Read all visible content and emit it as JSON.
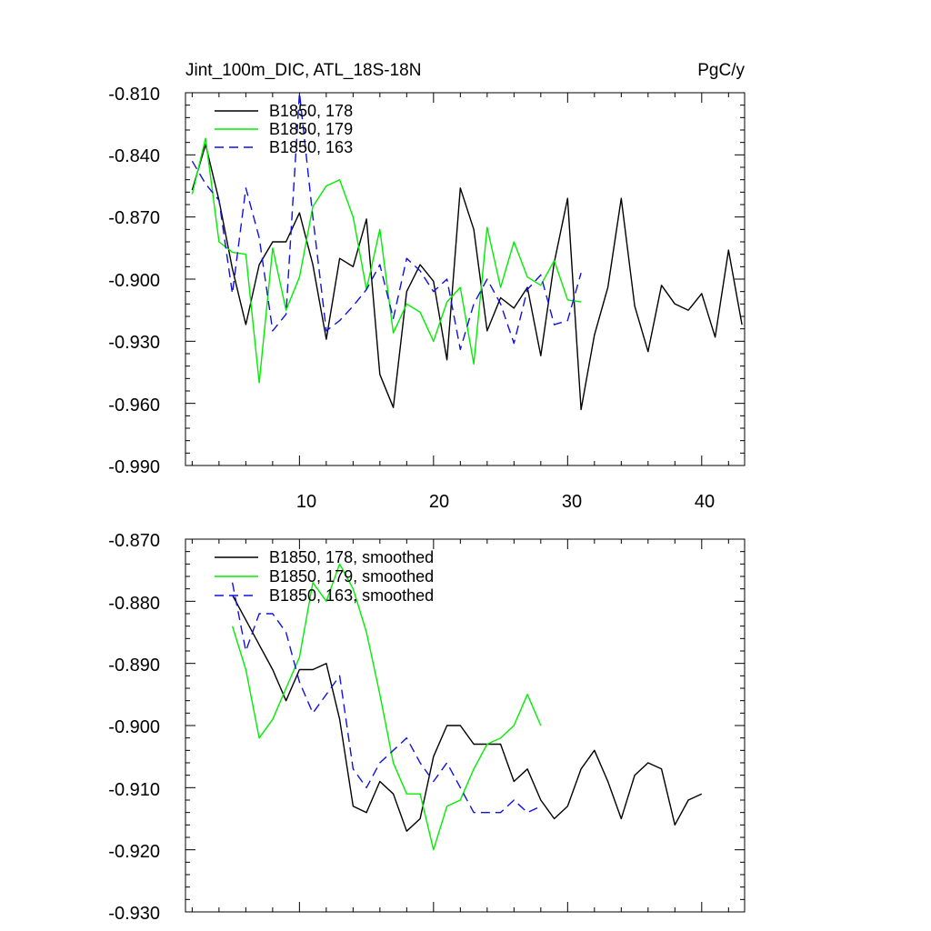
{
  "chart_data": [
    {
      "type": "line",
      "title": "Jint_100m_DIC, ATL_18S-18N",
      "units": "PgC/y",
      "xlim": [
        1.5,
        43.2
      ],
      "ylim": [
        -0.99,
        -0.81
      ],
      "ytick_labels": [
        "-0.810",
        "-0.840",
        "-0.870",
        "-0.900",
        "-0.930",
        "-0.960",
        "-0.990"
      ],
      "xtick_labels": [
        "10",
        "20",
        "30",
        "40"
      ],
      "series": [
        {
          "name": "B1850, 178",
          "color": "#000000",
          "dash": "solid",
          "x": [
            2,
            3,
            4,
            5,
            6,
            7,
            8,
            9,
            10,
            11,
            12,
            13,
            14,
            15,
            16,
            17,
            18,
            19,
            20,
            21,
            22,
            23,
            24,
            25,
            26,
            27,
            28,
            29,
            30,
            31,
            32,
            33,
            34,
            35,
            36,
            37,
            38,
            39,
            40,
            41,
            42,
            43
          ],
          "values": [
            -0.857,
            -0.835,
            -0.862,
            -0.895,
            -0.922,
            -0.893,
            -0.882,
            -0.882,
            -0.868,
            -0.893,
            -0.929,
            -0.89,
            -0.894,
            -0.871,
            -0.946,
            -0.962,
            -0.906,
            -0.893,
            -0.901,
            -0.939,
            -0.856,
            -0.876,
            -0.925,
            -0.909,
            -0.914,
            -0.904,
            -0.937,
            -0.892,
            -0.861,
            -0.963,
            -0.927,
            -0.904,
            -0.861,
            -0.913,
            -0.935,
            -0.903,
            -0.912,
            -0.915,
            -0.907,
            -0.928,
            -0.886,
            -0.922
          ]
        },
        {
          "name": "B1850, 179",
          "color": "#00ee00",
          "dash": "solid",
          "x": [
            2,
            3,
            4,
            5,
            6,
            7,
            8,
            9,
            10,
            11,
            12,
            13,
            14,
            15,
            16,
            17,
            18,
            19,
            20,
            21,
            22,
            23,
            24,
            25,
            26,
            27,
            28,
            29,
            30,
            31
          ],
          "values": [
            -0.859,
            -0.832,
            -0.882,
            -0.887,
            -0.888,
            -0.95,
            -0.885,
            -0.915,
            -0.899,
            -0.865,
            -0.855,
            -0.852,
            -0.87,
            -0.905,
            -0.876,
            -0.926,
            -0.912,
            -0.916,
            -0.93,
            -0.911,
            -0.904,
            -0.941,
            -0.875,
            -0.904,
            -0.882,
            -0.899,
            -0.903,
            -0.891,
            -0.91,
            -0.911
          ]
        },
        {
          "name": "B1850, 163",
          "color": "#1010e0",
          "dash": "dashed",
          "x": [
            2,
            3,
            4,
            5,
            6,
            7,
            8,
            9,
            10,
            11,
            12,
            13,
            14,
            15,
            16,
            17,
            18,
            19,
            20,
            21,
            22,
            23,
            24,
            25,
            26,
            27,
            28,
            29,
            30,
            31
          ],
          "values": [
            -0.843,
            -0.854,
            -0.862,
            -0.907,
            -0.856,
            -0.88,
            -0.925,
            -0.917,
            -0.81,
            -0.87,
            -0.925,
            -0.92,
            -0.913,
            -0.905,
            -0.893,
            -0.919,
            -0.89,
            -0.896,
            -0.906,
            -0.9,
            -0.934,
            -0.912,
            -0.9,
            -0.912,
            -0.931,
            -0.905,
            -0.898,
            -0.922,
            -0.92,
            -0.897
          ]
        }
      ]
    },
    {
      "type": "line",
      "title": "",
      "ylim": [
        -0.93,
        -0.87
      ],
      "ytick_labels": [
        "-0.870",
        "-0.880",
        "-0.890",
        "-0.900",
        "-0.910",
        "-0.920",
        "-0.930"
      ],
      "series": [
        {
          "name": "B1850, 178, smoothed",
          "color": "#000000",
          "dash": "solid",
          "x": [
            5,
            6,
            7,
            8,
            9,
            10,
            11,
            12,
            13,
            14,
            15,
            16,
            17,
            18,
            19,
            20,
            21,
            22,
            23,
            24,
            25,
            26,
            27,
            28,
            29,
            30,
            31,
            32,
            33,
            34,
            35,
            36,
            37,
            38,
            39,
            40
          ],
          "values": [
            -0.879,
            -0.883,
            -0.887,
            -0.891,
            -0.896,
            -0.891,
            -0.891,
            -0.89,
            -0.899,
            -0.913,
            -0.914,
            -0.909,
            -0.911,
            -0.917,
            -0.915,
            -0.905,
            -0.9,
            -0.9,
            -0.903,
            -0.903,
            -0.903,
            -0.909,
            -0.907,
            -0.912,
            -0.915,
            -0.913,
            -0.907,
            -0.904,
            -0.909,
            -0.915,
            -0.908,
            -0.906,
            -0.907,
            -0.916,
            -0.912,
            -0.911
          ]
        },
        {
          "name": "B1850, 179, smoothed",
          "color": "#00ee00",
          "dash": "solid",
          "x": [
            5,
            6,
            7,
            8,
            9,
            10,
            11,
            12,
            13,
            14,
            15,
            16,
            17,
            18,
            19,
            20,
            21,
            22,
            23,
            24,
            25,
            26,
            27,
            28
          ],
          "values": [
            -0.884,
            -0.891,
            -0.902,
            -0.899,
            -0.894,
            -0.889,
            -0.877,
            -0.88,
            -0.874,
            -0.878,
            -0.885,
            -0.895,
            -0.906,
            -0.911,
            -0.911,
            -0.92,
            -0.913,
            -0.912,
            -0.907,
            -0.903,
            -0.902,
            -0.9,
            -0.895,
            -0.9
          ]
        },
        {
          "name": "B1850, 163, smoothed",
          "color": "#1010e0",
          "dash": "dashed",
          "x": [
            5,
            6,
            7,
            8,
            9,
            10,
            11,
            12,
            13,
            14,
            15,
            16,
            17,
            18,
            19,
            20,
            21,
            22,
            23,
            24,
            25,
            26,
            27,
            28
          ],
          "values": [
            -0.877,
            -0.888,
            -0.882,
            -0.882,
            -0.885,
            -0.893,
            -0.898,
            -0.895,
            -0.892,
            -0.907,
            -0.91,
            -0.906,
            -0.904,
            -0.902,
            -0.906,
            -0.909,
            -0.906,
            -0.91,
            -0.914,
            -0.914,
            -0.914,
            -0.912,
            -0.914,
            -0.913
          ]
        }
      ]
    }
  ]
}
